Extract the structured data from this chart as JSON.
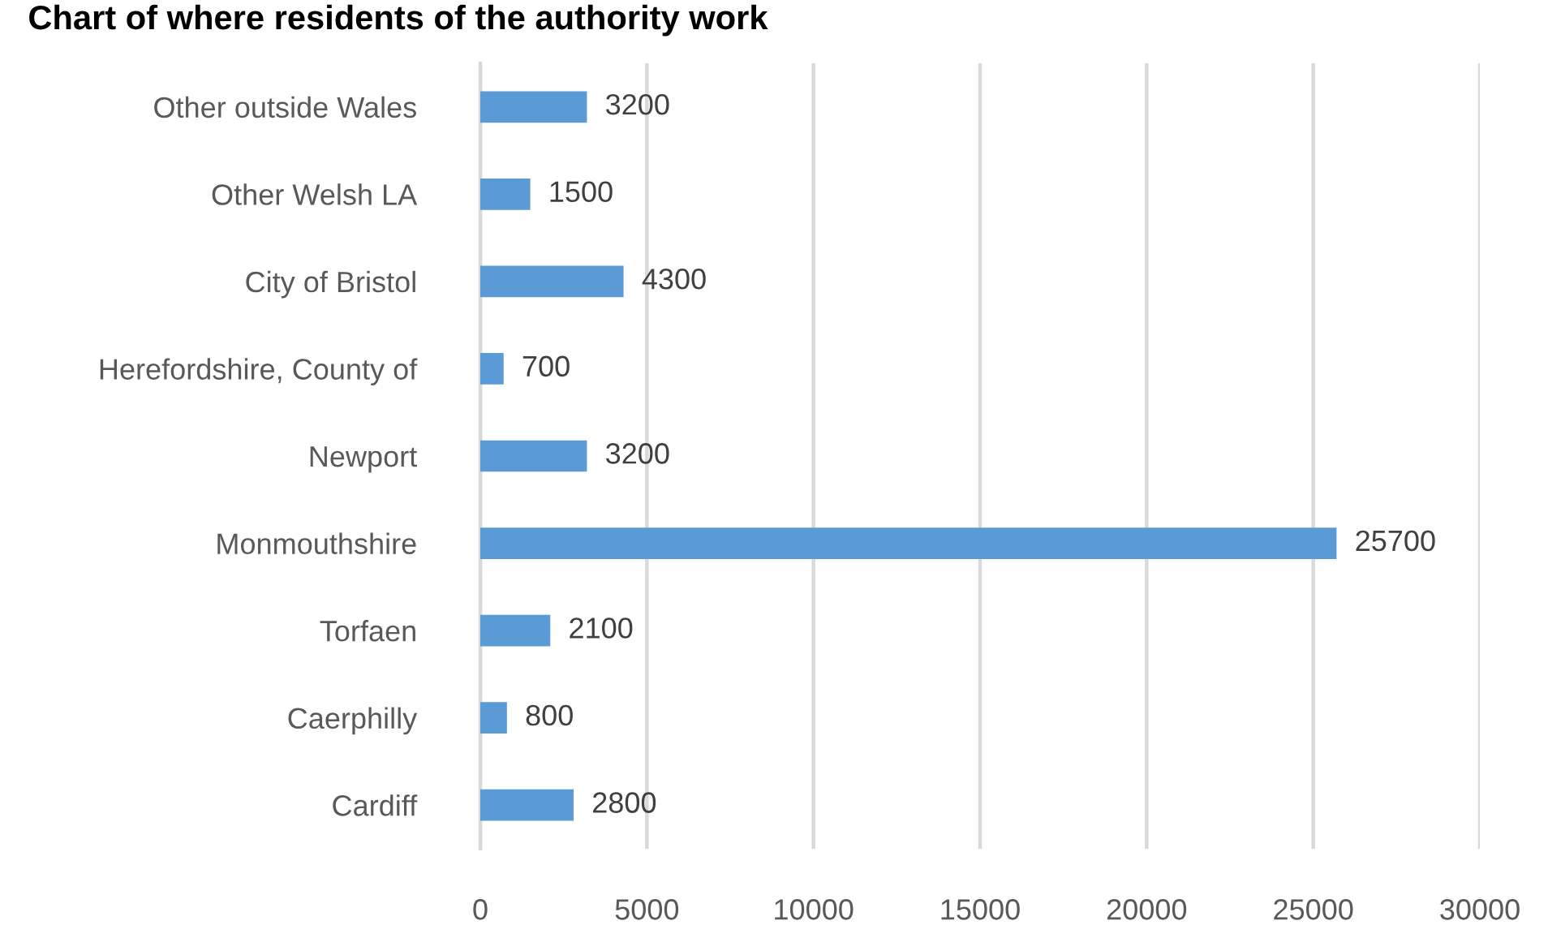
{
  "chart_data": {
    "type": "bar",
    "orientation": "horizontal",
    "title": "Chart of where residents of the authority work",
    "categories": [
      "Other outside Wales",
      "Other Welsh LA",
      "City of Bristol",
      "Herefordshire, County of",
      "Newport",
      "Monmouthshire",
      "Torfaen",
      "Caerphilly",
      "Cardiff"
    ],
    "values": [
      3200,
      1500,
      4300,
      700,
      3200,
      25700,
      2100,
      800,
      2800
    ],
    "color": "#5b9bd5",
    "xlim": [
      0,
      30000
    ],
    "xticks": [
      0,
      5000,
      10000,
      15000,
      20000,
      25000,
      30000
    ],
    "grid": "x",
    "data_labels": true
  }
}
